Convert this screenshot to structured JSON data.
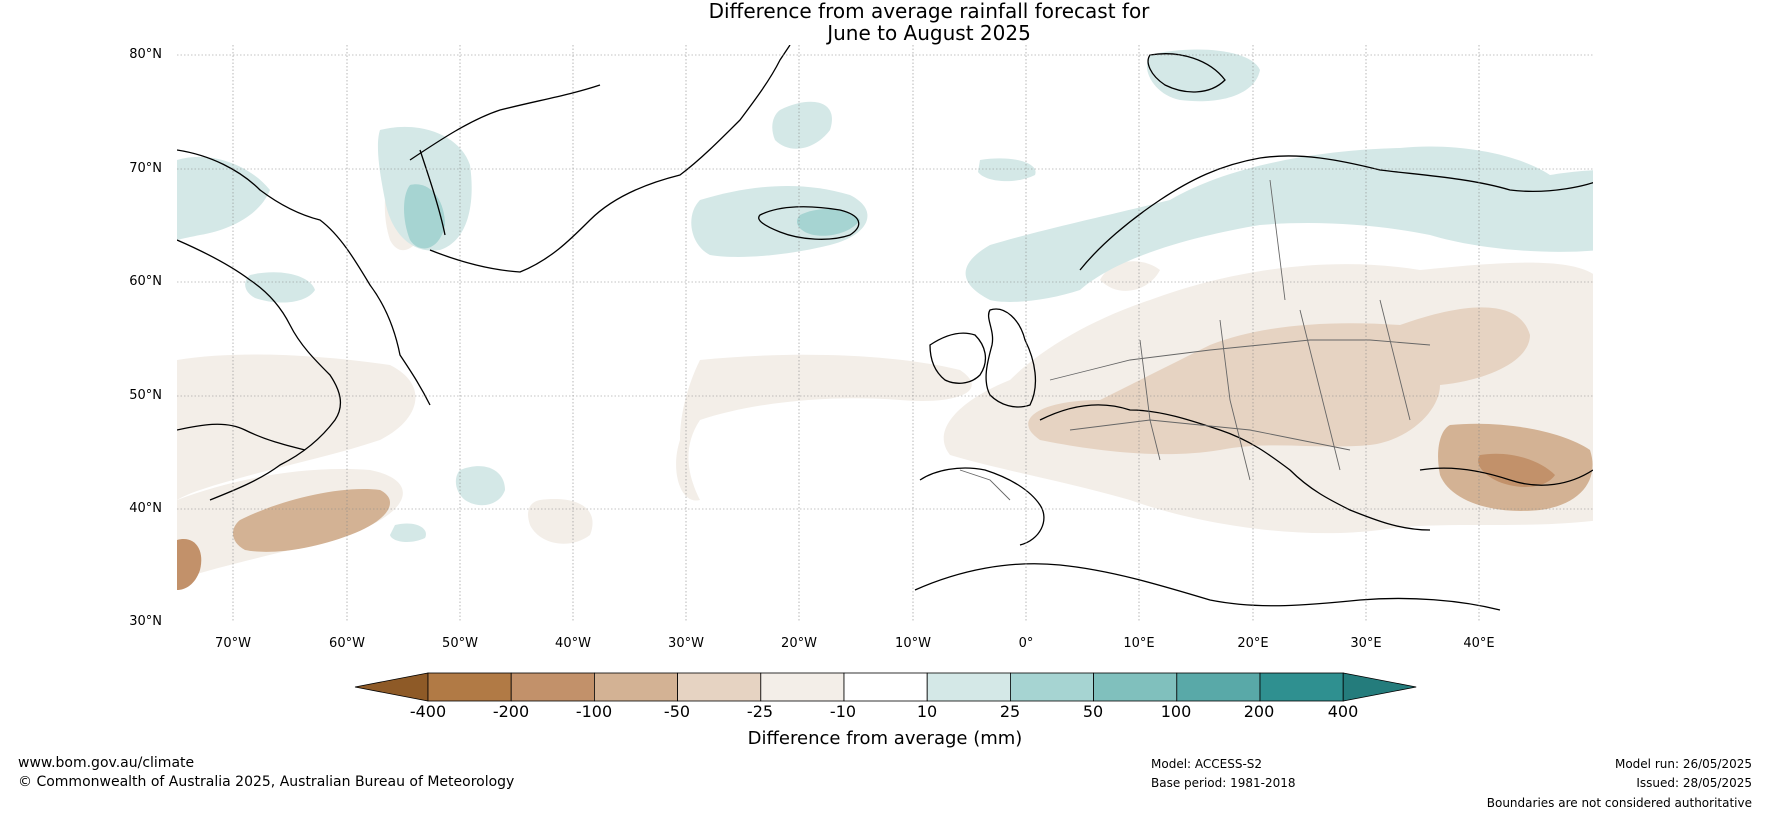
{
  "title": {
    "line1": "Difference from average rainfall forecast for",
    "line2": "June to August 2025"
  },
  "map": {
    "lat_labels": [
      "80°N",
      "70°N",
      "60°N",
      "50°N",
      "40°N",
      "30°N"
    ],
    "lon_labels": [
      "70°W",
      "60°W",
      "50°W",
      "40°W",
      "30°W",
      "20°W",
      "10°W",
      "0°",
      "10°E",
      "20°E",
      "30°E",
      "40°E"
    ]
  },
  "colorbar": {
    "tick_labels": [
      "-400",
      "-200",
      "-100",
      "-50",
      "-25",
      "-10",
      "10",
      "25",
      "50",
      "100",
      "200",
      "400"
    ],
    "colors": [
      "#8e5a27",
      "#b17a45",
      "#c2916a",
      "#d3b294",
      "#e6d3c2",
      "#f3eee8",
      "#ffffff",
      "#d4e8e7",
      "#a6d4d2",
      "#80c0bd",
      "#59a9a8",
      "#2f9090",
      "#247c7c"
    ],
    "title": "Difference from average (mm)"
  },
  "footer": {
    "website": "www.bom.gov.au/climate",
    "copyright": "© Commonwealth of Australia 2025, Australian Bureau of Meteorology",
    "model": "Model: ACCESS-S2",
    "base_period": "Base period: 1981-2018",
    "model_run": "Model run: 26/05/2025",
    "issued": "Issued: 28/05/2025",
    "disclaimer": "Boundaries are not considered authoritative"
  }
}
